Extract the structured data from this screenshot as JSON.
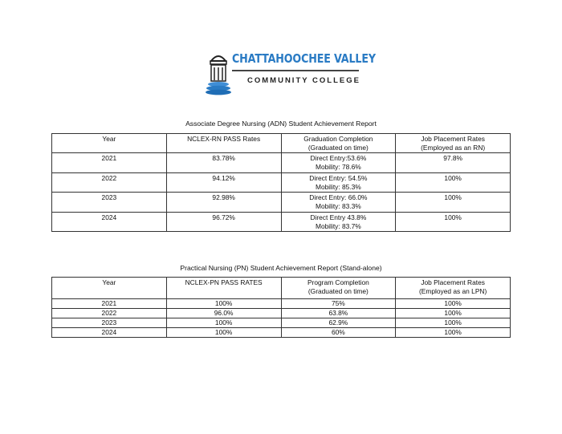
{
  "logo": {
    "name": "CHATTAHOOCHEE VALLEY",
    "subtitle": "COMMUNITY COLLEGE",
    "brand_color": "#2a7bc4"
  },
  "adn": {
    "title": "Associate Degree Nursing (ADN) Student Achievement Report",
    "headers": [
      [
        "Year"
      ],
      [
        "NCLEX-RN PASS Rates"
      ],
      [
        "Graduation Completion",
        "(Graduated on time)"
      ],
      [
        "Job Placement Rates",
        "(Employed as an RN)"
      ]
    ],
    "rows": [
      {
        "year": "2021",
        "nclex": "83.78%",
        "grad": [
          "Direct Entry:53.6%",
          "Mobility: 78.6%"
        ],
        "job": "97.8%"
      },
      {
        "year": "2022",
        "nclex": "94.12%",
        "grad": [
          "Direct Entry: 54.5%",
          "Mobility: 85.3%"
        ],
        "job": "100%"
      },
      {
        "year": "2023",
        "nclex": "92.98%",
        "grad": [
          "Direct Entry: 66.0%",
          "Mobility: 83.3%"
        ],
        "job": "100%"
      },
      {
        "year": "2024",
        "nclex": "96.72%",
        "grad": [
          "Direct Entry 43.8%",
          "Mobility: 83.7%"
        ],
        "job": "100%"
      }
    ]
  },
  "pn": {
    "title": "Practical Nursing (PN) Student Achievement Report (Stand-alone)",
    "headers": [
      [
        "Year"
      ],
      [
        "NCLEX-PN PASS RATES"
      ],
      [
        "Program Completion",
        "(Graduated on time)"
      ],
      [
        "Job Placement Rates",
        "(Employed as an LPN)"
      ]
    ],
    "rows": [
      {
        "year": "2021",
        "nclex": "100%",
        "completion": "75%",
        "job": "100%"
      },
      {
        "year": "2022",
        "nclex": "96.0%",
        "completion": "63.8%",
        "job": "100%"
      },
      {
        "year": "2023",
        "nclex": "100%",
        "completion": "62.9%",
        "job": "100%"
      },
      {
        "year": "2024",
        "nclex": "100%",
        "completion": "60%",
        "job": "100%"
      }
    ]
  }
}
